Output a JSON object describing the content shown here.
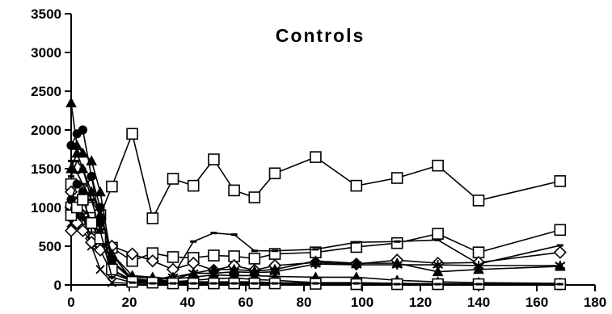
{
  "chart_data": {
    "type": "line",
    "title": "Controls",
    "xlabel": "",
    "ylabel": "",
    "xlim": [
      0,
      180
    ],
    "ylim": [
      0,
      3500
    ],
    "x_ticks": [
      0,
      20,
      40,
      60,
      80,
      100,
      120,
      140,
      160,
      180
    ],
    "y_ticks": [
      0,
      500,
      1000,
      1500,
      2000,
      2500,
      3000,
      3500
    ],
    "grid": false,
    "legend": "none",
    "colors": {
      "line": "#000000",
      "background": "#ffffff"
    },
    "series": [
      {
        "marker": "square",
        "x": [
          0,
          2,
          4,
          7,
          10,
          14,
          21,
          28,
          35,
          42,
          49,
          56,
          63,
          70,
          84,
          98,
          112,
          126,
          140,
          168
        ],
        "y": [
          1300,
          1200,
          1100,
          1000,
          900,
          1270,
          1950,
          860,
          1370,
          1280,
          1620,
          1220,
          1130,
          1440,
          1650,
          1280,
          1380,
          1540,
          1090,
          1340
        ]
      },
      {
        "marker": "square",
        "x": [
          0,
          2,
          4,
          7,
          10,
          14,
          21,
          28,
          35,
          42,
          49,
          56,
          63,
          70,
          84,
          98,
          112,
          126,
          140,
          168
        ],
        "y": [
          1000,
          900,
          850,
          750,
          650,
          480,
          310,
          410,
          360,
          350,
          380,
          370,
          340,
          400,
          420,
          490,
          540,
          660,
          420,
          710
        ]
      },
      {
        "marker": "dash",
        "x": [
          0,
          2,
          4,
          7,
          10,
          14,
          21,
          28,
          35,
          42,
          49,
          56,
          63,
          70,
          84,
          98,
          112,
          126,
          140,
          168
        ],
        "y": [
          1600,
          1450,
          1300,
          1100,
          900,
          400,
          60,
          50,
          120,
          560,
          670,
          650,
          440,
          440,
          460,
          550,
          560,
          580,
          270,
          510
        ]
      },
      {
        "marker": "diamond",
        "x": [
          0,
          2,
          4,
          7,
          10,
          14,
          21,
          28,
          35,
          42,
          49,
          56,
          63,
          70,
          84,
          98,
          112,
          126,
          140,
          168
        ],
        "y": [
          1200,
          1050,
          900,
          600,
          500,
          500,
          400,
          310,
          200,
          280,
          190,
          250,
          190,
          250,
          290,
          270,
          320,
          280,
          290,
          420
        ]
      },
      {
        "marker": "star",
        "x": [
          0,
          2,
          4,
          7,
          10,
          14,
          21,
          28,
          35,
          42,
          49,
          56,
          63,
          70,
          84,
          98,
          112,
          126,
          140,
          168
        ],
        "y": [
          950,
          900,
          900,
          750,
          700,
          300,
          60,
          50,
          100,
          150,
          150,
          170,
          160,
          170,
          270,
          260,
          260,
          260,
          250,
          250
        ]
      },
      {
        "marker": "triangle",
        "x": [
          0,
          2,
          4,
          7,
          10,
          14,
          21,
          28,
          35,
          42,
          49,
          56,
          63,
          70,
          84,
          98,
          112,
          126,
          140,
          168
        ],
        "y": [
          2350,
          1800,
          1700,
          1600,
          1200,
          300,
          100,
          90,
          70,
          150,
          200,
          200,
          180,
          200,
          310,
          280,
          280,
          170,
          200,
          240
        ]
      },
      {
        "marker": "circle",
        "x": [
          0,
          2,
          4,
          7,
          10,
          14,
          21,
          28,
          35,
          42,
          49,
          56,
          63,
          70,
          84,
          98,
          112,
          126,
          140,
          168
        ],
        "y": [
          1800,
          1950,
          2000,
          1400,
          800,
          200,
          60,
          40,
          40,
          60,
          80,
          90,
          70,
          60,
          30,
          30,
          20,
          15,
          10,
          10
        ]
      },
      {
        "marker": "triangle",
        "x": [
          0,
          2,
          4,
          7,
          10,
          14,
          21,
          28,
          35,
          42,
          49,
          56,
          63,
          70,
          84,
          98,
          112,
          126,
          140,
          168
        ],
        "y": [
          1500,
          1700,
          1500,
          1200,
          900,
          400,
          120,
          100,
          80,
          100,
          130,
          120,
          120,
          110,
          100,
          100,
          60,
          40,
          30,
          20
        ]
      },
      {
        "marker": "x",
        "x": [
          0,
          2,
          4,
          7,
          10,
          14,
          21,
          28,
          35,
          42,
          49,
          56,
          63,
          70,
          84,
          98,
          112,
          126,
          140,
          168
        ],
        "y": [
          800,
          750,
          900,
          500,
          200,
          30,
          20,
          20,
          20,
          20,
          30,
          30,
          20,
          20,
          20,
          20,
          10,
          10,
          10,
          10
        ]
      },
      {
        "marker": "circle",
        "x": [
          0,
          2,
          4,
          7,
          10,
          14,
          21,
          28,
          35,
          42,
          49,
          56,
          63,
          70,
          84,
          98,
          112,
          126,
          140,
          168
        ],
        "y": [
          1100,
          1300,
          1200,
          1400,
          1000,
          300,
          80,
          60,
          50,
          40,
          40,
          40,
          40,
          30,
          20,
          20,
          15,
          10,
          10,
          10
        ]
      },
      {
        "marker": "diamond",
        "x": [
          0,
          2,
          4,
          7,
          10,
          14,
          21,
          28,
          35,
          42,
          49,
          56,
          63,
          70,
          84,
          98,
          112,
          126,
          140,
          168
        ],
        "y": [
          700,
          800,
          700,
          550,
          450,
          150,
          50,
          40,
          40,
          30,
          30,
          30,
          30,
          30,
          20,
          20,
          20,
          15,
          15,
          10
        ]
      },
      {
        "marker": "square",
        "x": [
          0,
          2,
          4,
          7,
          10,
          14,
          21,
          28,
          35,
          42,
          49,
          56,
          63,
          70,
          84,
          98,
          112,
          126,
          140,
          168
        ],
        "y": [
          900,
          1000,
          1100,
          800,
          600,
          200,
          40,
          30,
          20,
          20,
          20,
          20,
          20,
          20,
          15,
          10,
          10,
          10,
          10,
          10
        ]
      },
      {
        "marker": "dash",
        "x": [
          0,
          2,
          4,
          7,
          10,
          14,
          21,
          28,
          35,
          42,
          49,
          56,
          63,
          70,
          84,
          98,
          112,
          126,
          140,
          168
        ],
        "y": [
          1400,
          1600,
          1500,
          1100,
          700,
          100,
          30,
          20,
          20,
          20,
          20,
          20,
          20,
          20,
          20,
          20,
          10,
          10,
          10,
          10
        ]
      }
    ]
  }
}
